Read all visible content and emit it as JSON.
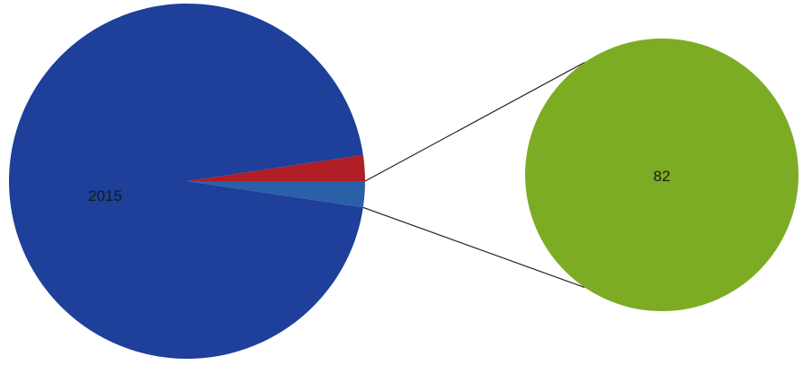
{
  "chart_data": {
    "type": "pie",
    "title": "",
    "main_pie": {
      "slices": [
        {
          "value": 2015,
          "label": "2015",
          "color": "#1e3f9a"
        },
        {
          "value": 50,
          "label": "",
          "color": "#b01e26"
        },
        {
          "value": 50,
          "label": "",
          "color": "#2b5fa7"
        }
      ]
    },
    "exploded_pie": {
      "slices": [
        {
          "value": 82,
          "label": "82",
          "color": "#7cac24"
        }
      ]
    },
    "connector_color": "#222222",
    "legend": "none"
  }
}
